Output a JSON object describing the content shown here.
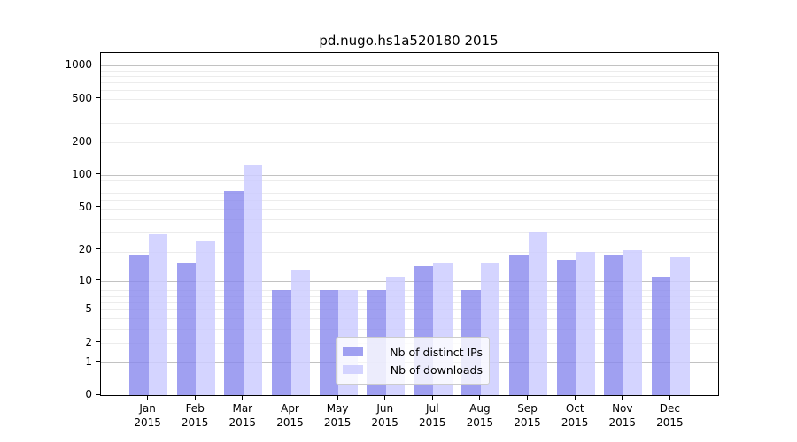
{
  "chart_data": {
    "type": "bar",
    "title": "pd.nugo.hs1a520180 2015",
    "categories": [
      "Jan",
      "Feb",
      "Mar",
      "Apr",
      "May",
      "Jun",
      "Jul",
      "Aug",
      "Sep",
      "Oct",
      "Nov",
      "Dec"
    ],
    "category_year": "2015",
    "series": [
      {
        "name": "Nb of distinct IPs",
        "color": "#8888ee",
        "fill": "rgba(136,136,238,0.8)",
        "values": [
          18,
          15,
          72,
          8,
          8,
          8,
          14,
          8,
          18,
          16,
          18,
          11
        ]
      },
      {
        "name": "Nb of downloads",
        "color": "#ccccff",
        "fill": "rgba(204,204,255,0.85)",
        "values": [
          28,
          24,
          122,
          13,
          8,
          11,
          15,
          15,
          30,
          19,
          20,
          17
        ]
      }
    ],
    "yscale": "log1p",
    "ylim": [
      0,
      1300
    ],
    "y_ticks": [
      0,
      1,
      2,
      5,
      10,
      20,
      50,
      100,
      200,
      500,
      1000
    ],
    "grid": true,
    "legend_position": "lower center",
    "colors": {
      "major_grid": "#c2c2c2",
      "minor_grid": "#ececec",
      "axis": "#000000"
    }
  }
}
